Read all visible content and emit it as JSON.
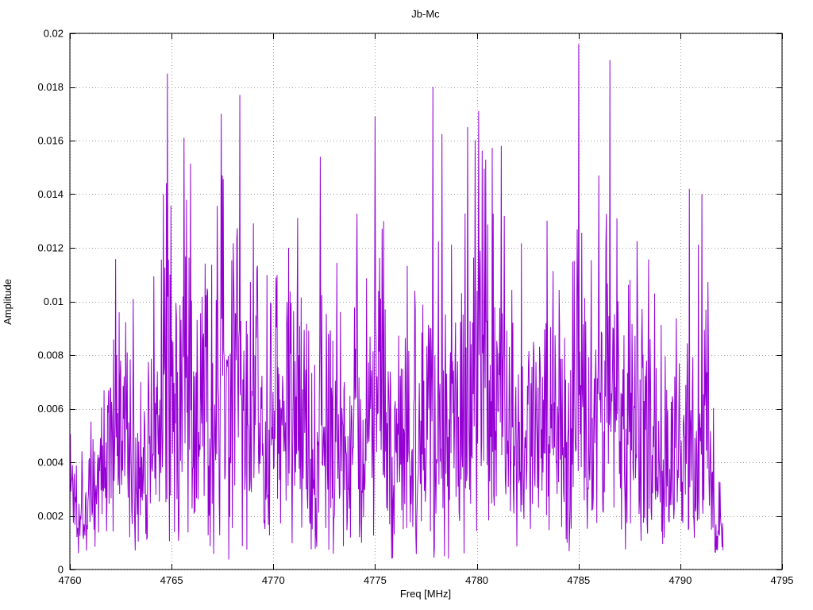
{
  "chart_data": {
    "type": "line",
    "title": "Jb-Mc",
    "xlabel": "Freq [MHz]",
    "ylabel": "Amplitude",
    "xlim": [
      4760,
      4795
    ],
    "ylim": [
      0,
      0.02
    ],
    "grid": true,
    "legend": "none",
    "line_color": "#9400d3",
    "grid_color": "#9a9a9a",
    "x_ticks": [
      4760,
      4765,
      4770,
      4775,
      4780,
      4785,
      4790,
      4795
    ],
    "x_tick_labels": [
      "4760",
      "4765",
      "4770",
      "4775",
      "4780",
      "4785",
      "4790",
      "4795"
    ],
    "y_ticks": [
      0,
      0.002,
      0.004,
      0.006,
      0.008,
      0.01,
      0.012,
      0.014,
      0.016,
      0.018,
      0.02
    ],
    "y_tick_labels": [
      "0",
      "0.002",
      "0.004",
      "0.006",
      "0.008",
      "0.01",
      "0.012",
      "0.014",
      "0.016",
      "0.018",
      "0.02"
    ],
    "series_name": "Jb-Mc",
    "description": "Dense noisy amplitude spectrum from 4760 to ~4792 MHz; noise band mostly 0.001-0.012 with spikes reaching the envelope below.",
    "noise": {
      "seed": 1337,
      "n_points": 1300,
      "x_start": 4760.0,
      "x_end": 4792.1,
      "floor": 0.0005,
      "sigma_rel": 0.33,
      "envelope": [
        [
          4760.0,
          0.0085
        ],
        [
          4760.4,
          0.007
        ],
        [
          4761.0,
          0.0062
        ],
        [
          4761.5,
          0.0086
        ],
        [
          4762.2,
          0.0118
        ],
        [
          4762.8,
          0.0117
        ],
        [
          4763.4,
          0.0105
        ],
        [
          4763.9,
          0.0122
        ],
        [
          4764.4,
          0.014
        ],
        [
          4764.8,
          0.0186
        ],
        [
          4765.1,
          0.0147
        ],
        [
          4765.6,
          0.0162
        ],
        [
          4766.1,
          0.0146
        ],
        [
          4766.5,
          0.013
        ],
        [
          4766.9,
          0.0141
        ],
        [
          4767.4,
          0.017
        ],
        [
          4767.9,
          0.0148
        ],
        [
          4768.3,
          0.0177
        ],
        [
          4768.8,
          0.0128
        ],
        [
          4769.4,
          0.0131
        ],
        [
          4770.0,
          0.0134
        ],
        [
          4770.6,
          0.0144
        ],
        [
          4771.1,
          0.0145
        ],
        [
          4771.6,
          0.0122
        ],
        [
          4772.2,
          0.0155
        ],
        [
          4772.8,
          0.0122
        ],
        [
          4773.4,
          0.0127
        ],
        [
          4774.0,
          0.0136
        ],
        [
          4774.6,
          0.0118
        ],
        [
          4775.0,
          0.017
        ],
        [
          4775.5,
          0.0132
        ],
        [
          4776.0,
          0.0117
        ],
        [
          4776.6,
          0.0133
        ],
        [
          4777.2,
          0.014
        ],
        [
          4777.8,
          0.0181
        ],
        [
          4778.4,
          0.0158
        ],
        [
          4778.9,
          0.0145
        ],
        [
          4779.4,
          0.0166
        ],
        [
          4779.9,
          0.0169
        ],
        [
          4780.3,
          0.0171
        ],
        [
          4780.8,
          0.0156
        ],
        [
          4781.3,
          0.0159
        ],
        [
          4781.8,
          0.0148
        ],
        [
          4782.4,
          0.0136
        ],
        [
          4783.0,
          0.0126
        ],
        [
          4783.5,
          0.0138
        ],
        [
          4784.1,
          0.0127
        ],
        [
          4784.6,
          0.0116
        ],
        [
          4785.0,
          0.0196
        ],
        [
          4785.4,
          0.0136
        ],
        [
          4785.9,
          0.012
        ],
        [
          4786.5,
          0.0191
        ],
        [
          4787.0,
          0.0142
        ],
        [
          4787.5,
          0.0123
        ],
        [
          4788.0,
          0.0136
        ],
        [
          4788.5,
          0.0113
        ],
        [
          4789.0,
          0.0092
        ],
        [
          4789.5,
          0.0086
        ],
        [
          4790.0,
          0.0121
        ],
        [
          4790.4,
          0.0143
        ],
        [
          4790.8,
          0.0123
        ],
        [
          4791.1,
          0.014
        ],
        [
          4791.4,
          0.0102
        ],
        [
          4791.7,
          0.0056
        ],
        [
          4792.0,
          0.003
        ],
        [
          4792.1,
          0.0022
        ]
      ],
      "notable_peaks": [
        [
          4764.8,
          0.0185
        ],
        [
          4785.0,
          0.0196
        ],
        [
          4786.55,
          0.019
        ],
        [
          4777.85,
          0.018
        ],
        [
          4768.35,
          0.0177
        ],
        [
          4767.45,
          0.017
        ],
        [
          4775.0,
          0.0169
        ],
        [
          4780.1,
          0.0171
        ],
        [
          4779.55,
          0.0165
        ],
        [
          4765.6,
          0.0161
        ],
        [
          4772.3,
          0.0154
        ],
        [
          4781.2,
          0.0158
        ],
        [
          4790.45,
          0.0142
        ],
        [
          4791.05,
          0.014
        ],
        [
          4786.0,
          0.0147
        ],
        [
          4764.6,
          0.014
        ]
      ]
    }
  }
}
